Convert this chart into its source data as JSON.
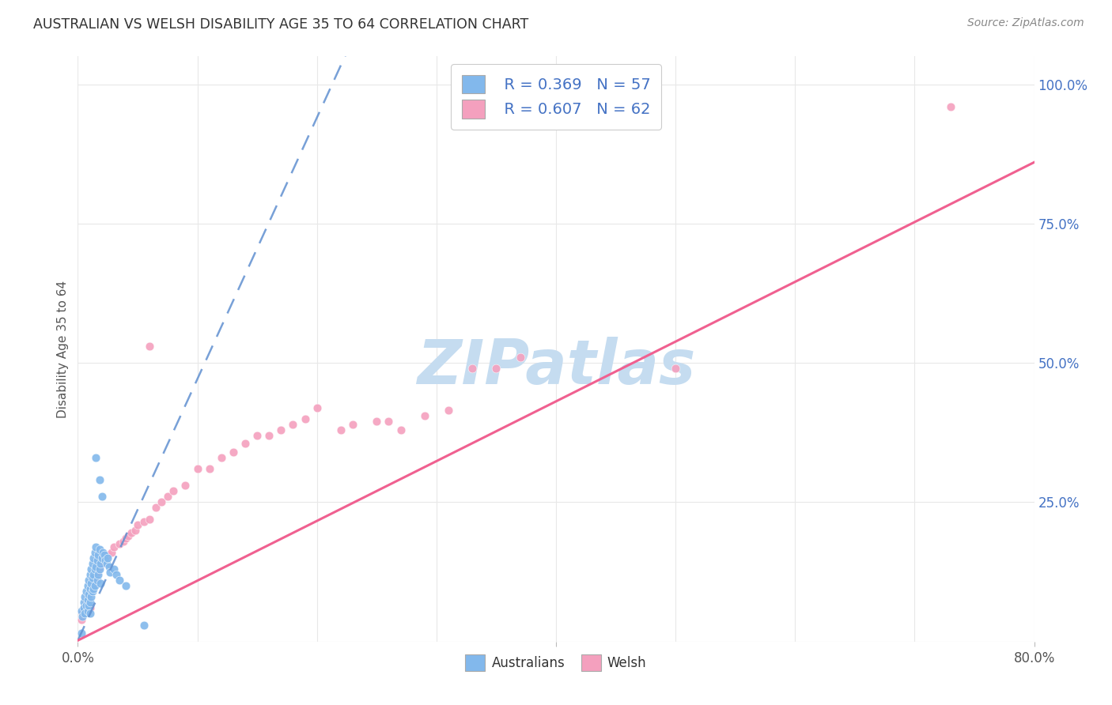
{
  "title": "AUSTRALIAN VS WELSH DISABILITY AGE 35 TO 64 CORRELATION CHART",
  "source": "Source: ZipAtlas.com",
  "ylabel": "Disability Age 35 to 64",
  "xlim": [
    0.0,
    0.8
  ],
  "ylim": [
    0.0,
    1.05
  ],
  "x_ticks": [
    0.0,
    0.1,
    0.2,
    0.3,
    0.4,
    0.5,
    0.6,
    0.7,
    0.8
  ],
  "y_ticks_right": [
    0.0,
    0.25,
    0.5,
    0.75,
    1.0
  ],
  "y_tick_labels_right": [
    "",
    "25.0%",
    "50.0%",
    "75.0%",
    "100.0%"
  ],
  "legend_R1": "R = 0.369",
  "legend_N1": "N = 57",
  "legend_R2": "R = 0.607",
  "legend_N2": "N = 62",
  "color_australian": "#82B8EC",
  "color_welsh": "#F4A0BE",
  "color_trendline_aus": "#6090D0",
  "color_trendline_welsh": "#F06090",
  "color_watermark": "#C5DCF0",
  "watermark_text": "ZIPatlas",
  "background_color": "#FFFFFF",
  "grid_color": "#E8E8E8",
  "trendline_aus_x0": 0.0,
  "trendline_aus_y0": 0.002,
  "trendline_aus_x1": 0.055,
  "trendline_aus_y1": 0.26,
  "trendline_welsh_x0": 0.0,
  "trendline_welsh_y0": 0.002,
  "trendline_welsh_x1": 0.8,
  "trendline_welsh_y1": 0.86,
  "aus_points": [
    [
      0.003,
      0.055
    ],
    [
      0.004,
      0.045
    ],
    [
      0.005,
      0.07
    ],
    [
      0.005,
      0.06
    ],
    [
      0.006,
      0.08
    ],
    [
      0.006,
      0.05
    ],
    [
      0.007,
      0.09
    ],
    [
      0.007,
      0.065
    ],
    [
      0.008,
      0.1
    ],
    [
      0.008,
      0.075
    ],
    [
      0.008,
      0.055
    ],
    [
      0.009,
      0.11
    ],
    [
      0.009,
      0.085
    ],
    [
      0.009,
      0.065
    ],
    [
      0.01,
      0.12
    ],
    [
      0.01,
      0.095
    ],
    [
      0.01,
      0.07
    ],
    [
      0.01,
      0.05
    ],
    [
      0.011,
      0.13
    ],
    [
      0.011,
      0.105
    ],
    [
      0.011,
      0.08
    ],
    [
      0.012,
      0.14
    ],
    [
      0.012,
      0.115
    ],
    [
      0.012,
      0.09
    ],
    [
      0.013,
      0.15
    ],
    [
      0.013,
      0.12
    ],
    [
      0.013,
      0.095
    ],
    [
      0.014,
      0.16
    ],
    [
      0.014,
      0.13
    ],
    [
      0.014,
      0.1
    ],
    [
      0.015,
      0.17
    ],
    [
      0.015,
      0.135
    ],
    [
      0.016,
      0.145
    ],
    [
      0.016,
      0.11
    ],
    [
      0.017,
      0.155
    ],
    [
      0.017,
      0.12
    ],
    [
      0.018,
      0.165
    ],
    [
      0.018,
      0.13
    ],
    [
      0.019,
      0.14
    ],
    [
      0.019,
      0.105
    ],
    [
      0.02,
      0.15
    ],
    [
      0.021,
      0.16
    ],
    [
      0.022,
      0.155
    ],
    [
      0.023,
      0.145
    ],
    [
      0.024,
      0.14
    ],
    [
      0.025,
      0.15
    ],
    [
      0.026,
      0.135
    ],
    [
      0.027,
      0.125
    ],
    [
      0.03,
      0.13
    ],
    [
      0.032,
      0.12
    ],
    [
      0.035,
      0.11
    ],
    [
      0.04,
      0.1
    ],
    [
      0.015,
      0.33
    ],
    [
      0.018,
      0.29
    ],
    [
      0.02,
      0.26
    ],
    [
      0.003,
      0.015
    ],
    [
      0.055,
      0.03
    ]
  ],
  "welsh_points": [
    [
      0.003,
      0.04
    ],
    [
      0.004,
      0.05
    ],
    [
      0.005,
      0.055
    ],
    [
      0.006,
      0.06
    ],
    [
      0.007,
      0.065
    ],
    [
      0.007,
      0.07
    ],
    [
      0.008,
      0.075
    ],
    [
      0.008,
      0.08
    ],
    [
      0.009,
      0.085
    ],
    [
      0.01,
      0.09
    ],
    [
      0.01,
      0.06
    ],
    [
      0.011,
      0.095
    ],
    [
      0.012,
      0.1
    ],
    [
      0.013,
      0.11
    ],
    [
      0.014,
      0.115
    ],
    [
      0.015,
      0.12
    ],
    [
      0.016,
      0.125
    ],
    [
      0.017,
      0.13
    ],
    [
      0.018,
      0.135
    ],
    [
      0.02,
      0.14
    ],
    [
      0.022,
      0.15
    ],
    [
      0.025,
      0.155
    ],
    [
      0.028,
      0.16
    ],
    [
      0.03,
      0.17
    ],
    [
      0.035,
      0.175
    ],
    [
      0.038,
      0.18
    ],
    [
      0.04,
      0.185
    ],
    [
      0.042,
      0.19
    ],
    [
      0.045,
      0.195
    ],
    [
      0.048,
      0.2
    ],
    [
      0.05,
      0.21
    ],
    [
      0.055,
      0.215
    ],
    [
      0.06,
      0.22
    ],
    [
      0.065,
      0.24
    ],
    [
      0.07,
      0.25
    ],
    [
      0.075,
      0.26
    ],
    [
      0.08,
      0.27
    ],
    [
      0.09,
      0.28
    ],
    [
      0.1,
      0.31
    ],
    [
      0.11,
      0.31
    ],
    [
      0.12,
      0.33
    ],
    [
      0.13,
      0.34
    ],
    [
      0.14,
      0.355
    ],
    [
      0.15,
      0.37
    ],
    [
      0.16,
      0.37
    ],
    [
      0.17,
      0.38
    ],
    [
      0.18,
      0.39
    ],
    [
      0.19,
      0.4
    ],
    [
      0.2,
      0.42
    ],
    [
      0.22,
      0.38
    ],
    [
      0.23,
      0.39
    ],
    [
      0.25,
      0.395
    ],
    [
      0.26,
      0.395
    ],
    [
      0.27,
      0.38
    ],
    [
      0.29,
      0.405
    ],
    [
      0.31,
      0.415
    ],
    [
      0.33,
      0.49
    ],
    [
      0.35,
      0.49
    ],
    [
      0.37,
      0.51
    ],
    [
      0.5,
      0.49
    ],
    [
      0.73,
      0.96
    ],
    [
      0.06,
      0.53
    ]
  ]
}
